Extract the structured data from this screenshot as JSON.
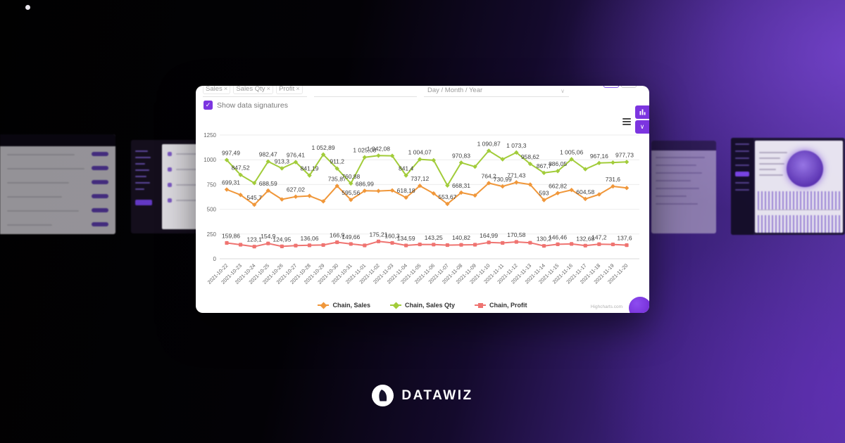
{
  "page": {
    "logo_text": "DATAWIZ",
    "watermark": "Highcharts.com",
    "accent_color": "#7c35e0"
  },
  "card": {
    "filter_chips": [
      {
        "label": "Sales"
      },
      {
        "label": "Sales Qty"
      },
      {
        "label": "Profit"
      }
    ],
    "chip_remove_symbol": "×",
    "search_input": {
      "value": "",
      "placeholder": ""
    },
    "grouping_select": {
      "value": "Day / Month / Year"
    },
    "checkbox": {
      "label": "Show data signatures",
      "checked": true,
      "check_symbol": "✓"
    },
    "select_chevron_symbol": "∨",
    "side_panel_chevron_symbol": "∨"
  },
  "chart_data": {
    "type": "line",
    "title": "",
    "xlabel": "",
    "ylabel": "",
    "ylim": [
      0,
      1250
    ],
    "yticks": [
      0,
      250,
      500,
      750,
      1000,
      1250
    ],
    "grid": true,
    "legend_position": "bottom",
    "x": [
      "2021-10-22",
      "2021-10-23",
      "2021-10-24",
      "2021-10-25",
      "2021-10-26",
      "2021-10-27",
      "2021-10-28",
      "2021-10-29",
      "2021-10-30",
      "2021-10-31",
      "2021-11-01",
      "2021-11-02",
      "2021-11-03",
      "2021-11-04",
      "2021-11-05",
      "2021-11-06",
      "2021-11-07",
      "2021-11-08",
      "2021-11-09",
      "2021-11-10",
      "2021-11-11",
      "2021-11-12",
      "2021-11-13",
      "2021-11-14",
      "2021-11-15",
      "2021-11-16",
      "2021-11-17",
      "2021-11-18",
      "2021-11-19",
      "2021-11-20"
    ],
    "series": [
      {
        "name": "Chain, Sales",
        "color": "#f0973a",
        "marker": "diamond",
        "values": [
          699.31,
          645,
          545.7,
          688.59,
          600,
          627.02,
          635,
          580,
          735.87,
          595.56,
          686.99,
          685,
          690,
          618.18,
          737.12,
          660,
          553.67,
          668.31,
          640,
          764.2,
          730.99,
          771.43,
          750,
          593,
          662.82,
          695,
          604.58,
          650,
          731.6,
          715
        ],
        "labels": [
          "699,31",
          null,
          "545,7",
          "688,59",
          null,
          "627,02",
          null,
          null,
          "735,87",
          "595,56",
          "686,99",
          null,
          null,
          "618,18",
          "737,12",
          null,
          "553,67",
          "668,31",
          null,
          "764,2",
          "730,99",
          "771,43",
          null,
          "593",
          "662,82",
          null,
          "604,58",
          null,
          "731,6",
          null
        ]
      },
      {
        "name": "Chain, Sales Qty",
        "color": "#a2cc3a",
        "marker": "diamond",
        "values": [
          997.49,
          847.52,
          765,
          982.47,
          913.3,
          976.41,
          841.19,
          1052.89,
          911.2,
          760.88,
          1025.08,
          1042.08,
          1040,
          841.4,
          1004.07,
          995,
          740,
          970.83,
          930,
          1090.87,
          1005,
          1073.3,
          958.62,
          867.7,
          886.05,
          1005.06,
          905,
          967.16,
          972,
          977.73
        ],
        "labels": [
          "997,49",
          "847,52",
          null,
          "982,47",
          "913,3",
          "976,41",
          "841,19",
          "1 052,89",
          "911,2",
          "760,88",
          "1 025,08",
          "1 042,08",
          null,
          "841,4",
          "1 004,07",
          null,
          null,
          "970,83",
          null,
          "1 090,87",
          null,
          "1 073,3",
          "958,62",
          "867,7",
          "886,05",
          "1 005,06",
          null,
          "967,16",
          null,
          "977,73"
        ]
      },
      {
        "name": "Chain, Profit",
        "color": "#ef7471",
        "marker": "square",
        "values": [
          159.86,
          142,
          123.1,
          154.9,
          124.95,
          133,
          136.06,
          139,
          166.9,
          149.66,
          135,
          175.21,
          160.3,
          134.59,
          145,
          143.25,
          138,
          140.82,
          142,
          164.99,
          160,
          170.58,
          162,
          130.2,
          146.46,
          150,
          132.68,
          147.2,
          145,
          137.6
        ],
        "labels": [
          "159,86",
          null,
          "123,1",
          "154,9",
          "124,95",
          null,
          "136,06",
          null,
          "166,9",
          "149,66",
          null,
          "175,21",
          "160,3",
          "134,59",
          null,
          "143,25",
          null,
          "140,82",
          null,
          "164,99",
          null,
          "170,58",
          null,
          "130,2",
          "146,46",
          null,
          "132,68",
          "147,2",
          null,
          "137,6"
        ]
      }
    ]
  }
}
